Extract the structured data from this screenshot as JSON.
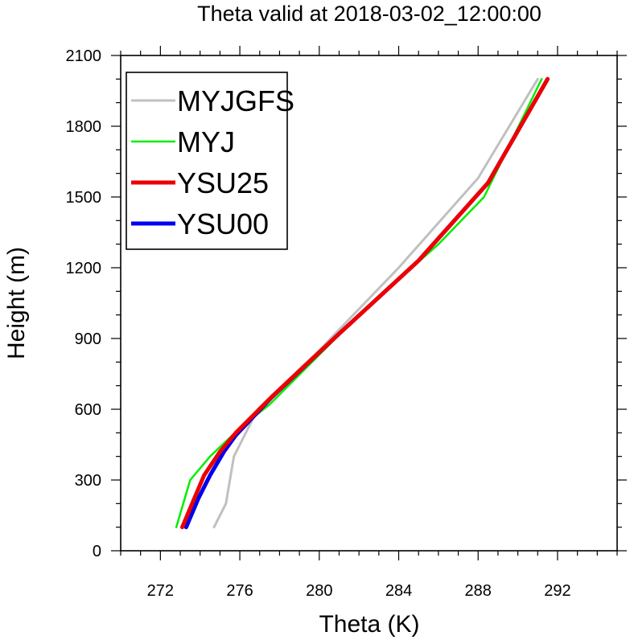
{
  "chart_data": {
    "type": "line",
    "title": "Theta valid at 2018-03-02_12:00:00",
    "xlabel": "Theta (K)",
    "ylabel": "Height (m)",
    "xlim": [
      270,
      295
    ],
    "ylim": [
      0,
      2100
    ],
    "xticks": [
      272,
      276,
      280,
      284,
      288,
      292
    ],
    "yticks": [
      0,
      300,
      600,
      900,
      1200,
      1500,
      1800,
      2100
    ],
    "grid": false,
    "legend_position": "top-left",
    "series": [
      {
        "name": "MYJGFS",
        "color": "#c0c0c0",
        "points": [
          [
            274.7,
            100
          ],
          [
            275.3,
            200
          ],
          [
            275.7,
            400
          ],
          [
            276.3,
            500
          ],
          [
            276.9,
            600
          ],
          [
            280.0,
            850
          ],
          [
            284.0,
            1200
          ],
          [
            288.0,
            1580
          ],
          [
            291.0,
            2000
          ]
        ]
      },
      {
        "name": "MYJ",
        "color": "#00ee00",
        "points": [
          [
            272.8,
            100
          ],
          [
            273.5,
            300
          ],
          [
            274.5,
            400
          ],
          [
            276.0,
            520
          ],
          [
            277.5,
            620
          ],
          [
            282.0,
            1000
          ],
          [
            286.0,
            1300
          ],
          [
            288.3,
            1500
          ],
          [
            291.2,
            2000
          ]
        ]
      },
      {
        "name": "YSU25",
        "color": "#ee0000",
        "points": [
          [
            273.1,
            100
          ],
          [
            273.6,
            200
          ],
          [
            274.2,
            320
          ],
          [
            275.0,
            420
          ],
          [
            275.8,
            500
          ],
          [
            277.7,
            660
          ],
          [
            281.0,
            920
          ],
          [
            285.0,
            1230
          ],
          [
            288.5,
            1560
          ],
          [
            291.5,
            2000
          ]
        ]
      },
      {
        "name": "YSU00",
        "color": "#0000ee",
        "points": [
          [
            273.3,
            100
          ],
          [
            273.9,
            220
          ],
          [
            274.5,
            320
          ],
          [
            275.2,
            420
          ],
          [
            275.8,
            490
          ],
          [
            277.6,
            650
          ],
          [
            281.0,
            920
          ],
          [
            285.0,
            1230
          ],
          [
            288.5,
            1560
          ],
          [
            291.5,
            2000
          ]
        ]
      }
    ]
  }
}
